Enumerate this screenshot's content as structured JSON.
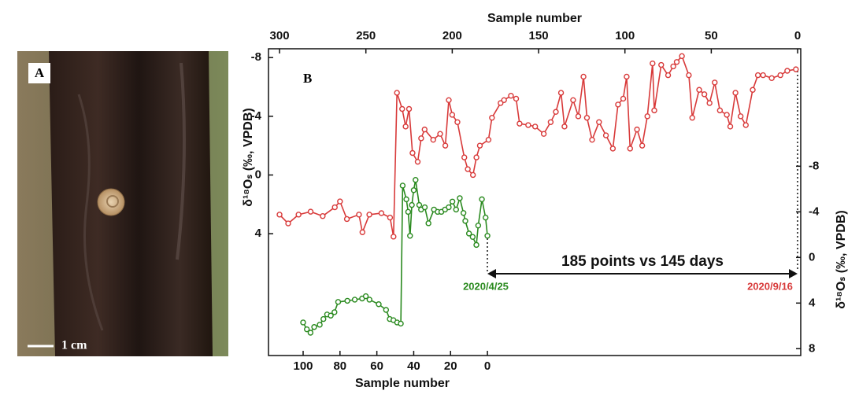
{
  "panel_a": {
    "label": "A",
    "scale_bar": "1 cm"
  },
  "chart_data": {
    "type": "line",
    "panel_label": "B",
    "xlabel": "Sample number",
    "x2label": "Sample number",
    "ylabel": "δ¹⁸Oₛ (‰, VPDB)",
    "y2label": "δ¹⁸Oₛ (‰, VPDB)",
    "xlim": [
      306.4,
      -1.8
    ],
    "xticks": [
      300,
      250,
      200,
      150,
      100,
      50,
      0
    ],
    "x2lim": [
      118.8,
      -170
    ],
    "x2ticks": [
      100,
      80,
      60,
      40,
      20,
      0
    ],
    "ylim": [
      12.3,
      -8.6
    ],
    "yticks": [
      -8,
      -4,
      0,
      4
    ],
    "y2lim": [
      8.6,
      -18.3
    ],
    "y2ticks": [
      -8,
      -4,
      0,
      4,
      8
    ],
    "annotations": [
      "185 points vs 145 days",
      "2020/4/25",
      "2020/9/16"
    ],
    "series": [
      {
        "color": "#d83a3a",
        "x": [
          300,
          295,
          289,
          282,
          275,
          268,
          265,
          261,
          254,
          252,
          248,
          241,
          236,
          234,
          232,
          229,
          227,
          225,
          223,
          220,
          218,
          216,
          211,
          207,
          204,
          202,
          200,
          197,
          193,
          191,
          188,
          186,
          184,
          179,
          177,
          172,
          170,
          166,
          163,
          161,
          156,
          152,
          147,
          143,
          140,
          137,
          135,
          130,
          127,
          124,
          122,
          119,
          115,
          111,
          107,
          104,
          101,
          99,
          97,
          93,
          90,
          87,
          84,
          83,
          79,
          75,
          72,
          70,
          67,
          63,
          61,
          57,
          54,
          51,
          48,
          45,
          41,
          39,
          36,
          33,
          30,
          26,
          23,
          20,
          15,
          10,
          6,
          1
        ],
        "values": [
          2.7,
          3.3,
          2.7,
          2.5,
          2.8,
          2.2,
          1.8,
          3.0,
          2.7,
          3.9,
          2.7,
          2.6,
          2.9,
          4.2,
          -5.6,
          -4.5,
          -3.3,
          -4.5,
          -1.5,
          -0.9,
          -2.5,
          -3.1,
          -2.4,
          -2.8,
          -2.0,
          -5.1,
          -4.1,
          -3.6,
          -1.2,
          -0.4,
          0,
          -1.2,
          -2.0,
          -2.4,
          -3.9,
          -4.9,
          -5.1,
          -5.4,
          -5.2,
          -3.5,
          -3.4,
          -3.3,
          -2.8,
          -3.6,
          -4.3,
          -5.6,
          -3.3,
          -5.1,
          -4.0,
          -6.7,
          -3.9,
          -2.4,
          -3.6,
          -2.7,
          -1.8,
          -4.8,
          -5.2,
          -6.7,
          -1.8,
          -3.1,
          -2.0,
          -4.0,
          -7.6,
          -4.4,
          -7.5,
          -6.8,
          -7.4,
          -7.7,
          -8.1,
          -6.8,
          -3.9,
          -5.8,
          -5.5,
          -4.9,
          -6.3,
          -4.4,
          -4.1,
          -3.3,
          -5.6,
          -4.0,
          -3.4,
          -5.8,
          -6.8,
          -6.8,
          -6.6,
          -6.8,
          -7.1,
          -7.2
        ]
      },
      {
        "color": "#2a8a1f",
        "axis": "y2",
        "xaxis": "x2",
        "x": [
          100,
          98,
          96,
          94,
          91,
          89,
          87,
          85,
          83,
          81,
          76,
          72,
          68,
          66,
          64,
          59,
          55,
          53,
          51,
          49,
          47,
          46,
          44,
          43,
          42,
          41,
          40,
          39,
          37,
          36,
          34,
          32,
          29,
          27,
          25,
          23,
          21,
          19,
          17,
          15,
          13,
          12,
          10,
          8,
          6,
          5,
          3,
          1,
          0
        ],
        "values": [
          5.7,
          6.3,
          6.6,
          6.1,
          5.9,
          5.4,
          5.0,
          5.1,
          4.8,
          3.9,
          3.8,
          3.7,
          3.6,
          3.4,
          3.7,
          4.1,
          4.6,
          5.4,
          5.5,
          5.7,
          5.8,
          -6.3,
          -5.1,
          -4.0,
          -1.9,
          -4.6,
          -5.9,
          -6.8,
          -4.6,
          -4.2,
          -4.4,
          -3.0,
          -4.2,
          -4.0,
          -4.0,
          -4.2,
          -4.4,
          -4.9,
          -4.2,
          -5.2,
          -3.9,
          -3.2,
          -2.1,
          -1.8,
          -1.1,
          -2.8,
          -5.1,
          -3.5,
          -1.9
        ]
      }
    ]
  }
}
